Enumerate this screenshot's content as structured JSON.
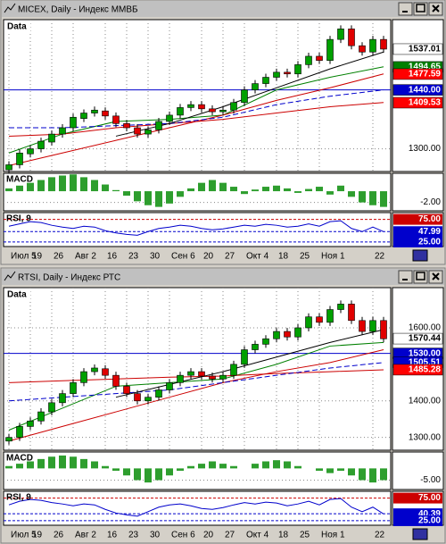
{
  "windows": [
    {
      "title": "MICEX, Daily - Индекс ММВБ",
      "panel_label": "Data",
      "price": {
        "ylim": [
          1246,
          1607
        ],
        "yticks": [
          {
            "value": 1300,
            "label": "1300.00"
          }
        ],
        "candles": [
          [
            1250,
            1262
          ],
          [
            1262,
            1290
          ],
          [
            1288,
            1300
          ],
          [
            1300,
            1318
          ],
          [
            1316,
            1335
          ],
          [
            1335,
            1350
          ],
          [
            1350,
            1375
          ],
          [
            1372,
            1385
          ],
          [
            1385,
            1392
          ],
          [
            1390,
            1378
          ],
          [
            1378,
            1360
          ],
          [
            1360,
            1350
          ],
          [
            1350,
            1335
          ],
          [
            1335,
            1345
          ],
          [
            1345,
            1365
          ],
          [
            1365,
            1380
          ],
          [
            1380,
            1398
          ],
          [
            1398,
            1405
          ],
          [
            1405,
            1395
          ],
          [
            1395,
            1388
          ],
          [
            1388,
            1392
          ],
          [
            1392,
            1410
          ],
          [
            1410,
            1440
          ],
          [
            1440,
            1455
          ],
          [
            1455,
            1470
          ],
          [
            1470,
            1482
          ],
          [
            1482,
            1478
          ],
          [
            1478,
            1500
          ],
          [
            1500,
            1520
          ],
          [
            1520,
            1510
          ],
          [
            1510,
            1560
          ],
          [
            1560,
            1585
          ],
          [
            1585,
            1545
          ],
          [
            1545,
            1530
          ],
          [
            1530,
            1560
          ],
          [
            1560,
            1537
          ]
        ],
        "lines": [
          {
            "color": "#008000",
            "dash": false,
            "values": [
              1290,
              1335,
              1365,
              1370,
              1380,
              1440,
              1470,
              1495
            ]
          },
          {
            "color": "#cc0000",
            "dash": false,
            "values": [
              1330,
              1335,
              1350,
              1360,
              1370,
              1385,
              1400,
              1410
            ]
          },
          {
            "color": "#cc0000",
            "dash": false,
            "values": [
              1260,
              1290,
              1320,
              1350,
              1380,
              1415,
              1445,
              1478
            ]
          },
          {
            "color": "#0000cc",
            "dash": true,
            "values": [
              1350,
              1350,
              1355,
              1360,
              1375,
              1405,
              1425,
              1440
            ]
          },
          {
            "color": "#000000",
            "dash": false,
            "values": [
              null,
              null,
              1330,
              1360,
              1400,
              1445,
              1490,
              1530
            ]
          }
        ],
        "tags": [
          {
            "value": 1537.01,
            "label": "1537.01",
            "bg": "#ffffff",
            "fg": "#000000",
            "line": false
          },
          {
            "value": 1494.65,
            "label": "1494.65",
            "bg": "#008000",
            "fg": "#ffffff",
            "line": false
          },
          {
            "value": 1477.59,
            "label": "1477.59",
            "bg": "#ff0000",
            "fg": "#ffffff",
            "line": false
          },
          {
            "value": 1440,
            "label": "1440.00",
            "bg": "#0000cc",
            "fg": "#ffffff",
            "line": true
          },
          {
            "value": 1409.53,
            "label": "1409.53",
            "bg": "#ff0000",
            "fg": "#ffffff",
            "line": false
          }
        ]
      },
      "macd": {
        "label": "MACD",
        "ylim": [
          -3.5,
          3.2
        ],
        "ticks": [
          {
            "value": -2,
            "label": "-2.00"
          }
        ],
        "values": [
          0.5,
          1,
          1.5,
          2,
          2.5,
          2.8,
          3,
          2.5,
          2,
          1.2,
          0.2,
          -0.8,
          -1.8,
          -2.5,
          -2.8,
          -2.2,
          -1,
          0.5,
          1.5,
          2,
          1.5,
          0.8,
          -0.5,
          0.3,
          0.8,
          1,
          0.5,
          -0.3,
          0.4,
          0.8,
          -0.6,
          1,
          -1,
          -2,
          -2.5,
          -2.8
        ]
      },
      "rsi": {
        "label": "RSI, 9",
        "ylim": [
          15,
          90
        ],
        "tags": [
          {
            "value": 75,
            "label": "75.00",
            "bg": "#cc0000",
            "fg": "#ffffff"
          },
          {
            "value": 47.99,
            "label": "47.99",
            "bg": "#0000cc",
            "fg": "#ffffff"
          },
          {
            "value": 25,
            "label": "25.00",
            "bg": "#0000cc",
            "fg": "#ffffff"
          }
        ],
        "values": [
          60,
          65,
          70,
          68,
          62,
          58,
          55,
          60,
          58,
          50,
          45,
          42,
          40,
          48,
          55,
          58,
          62,
          60,
          55,
          52,
          54,
          58,
          62,
          60,
          64,
          62,
          58,
          60,
          65,
          60,
          70,
          72,
          55,
          48,
          58,
          48
        ]
      },
      "categories": [
        "Июл 5",
        null,
        "19",
        null,
        "26",
        null,
        "Авг 2",
        null,
        null,
        "16",
        null,
        "23",
        null,
        "30",
        null,
        "Сен 6",
        null,
        null,
        "20",
        null,
        "27",
        null,
        "Окт 4",
        null,
        null,
        "18",
        null,
        "25",
        null,
        "Ноя 1",
        null,
        null,
        null,
        null,
        "22",
        null
      ]
    },
    {
      "title": "RTSI, Daily - Индекс РТС",
      "panel_label": "Data",
      "price": {
        "ylim": [
          1265,
          1710
        ],
        "yticks": [
          {
            "value": 1300,
            "label": "1300.00"
          },
          {
            "value": 1400,
            "label": "1400.00"
          },
          {
            "value": 1600,
            "label": "1600.00"
          }
        ],
        "candles": [
          [
            1290,
            1300
          ],
          [
            1300,
            1330
          ],
          [
            1330,
            1345
          ],
          [
            1345,
            1370
          ],
          [
            1370,
            1395
          ],
          [
            1395,
            1420
          ],
          [
            1420,
            1450
          ],
          [
            1450,
            1480
          ],
          [
            1480,
            1490
          ],
          [
            1488,
            1470
          ],
          [
            1470,
            1440
          ],
          [
            1440,
            1420
          ],
          [
            1420,
            1400
          ],
          [
            1400,
            1410
          ],
          [
            1410,
            1430
          ],
          [
            1430,
            1450
          ],
          [
            1450,
            1470
          ],
          [
            1470,
            1480
          ],
          [
            1480,
            1468
          ],
          [
            1468,
            1460
          ],
          [
            1460,
            1470
          ],
          [
            1470,
            1500
          ],
          [
            1500,
            1540
          ],
          [
            1540,
            1555
          ],
          [
            1555,
            1570
          ],
          [
            1570,
            1590
          ],
          [
            1590,
            1575
          ],
          [
            1575,
            1600
          ],
          [
            1600,
            1630
          ],
          [
            1630,
            1615
          ],
          [
            1615,
            1650
          ],
          [
            1650,
            1665
          ],
          [
            1665,
            1620
          ],
          [
            1620,
            1590
          ],
          [
            1590,
            1620
          ],
          [
            1620,
            1570
          ]
        ],
        "lines": [
          {
            "color": "#008000",
            "dash": false,
            "values": [
              1320,
              1380,
              1440,
              1450,
              1460,
              1500,
              1550,
              1560
            ]
          },
          {
            "color": "#cc0000",
            "dash": false,
            "values": [
              1450,
              1455,
              1460,
              1465,
              1468,
              1475,
              1480,
              1485
            ]
          },
          {
            "color": "#cc0000",
            "dash": false,
            "values": [
              1290,
              1330,
              1370,
              1410,
              1450,
              1480,
              1505,
              1540
            ]
          },
          {
            "color": "#0000cc",
            "dash": true,
            "values": [
              1400,
              1410,
              1420,
              1430,
              1450,
              1470,
              1490,
              1505
            ]
          },
          {
            "color": "#000000",
            "dash": false,
            "values": [
              null,
              null,
              1410,
              1445,
              1480,
              1520,
              1560,
              1595
            ]
          }
        ],
        "tags": [
          {
            "value": 1570.44,
            "label": "1570.44",
            "bg": "#ffffff",
            "fg": "#000000",
            "line": false
          },
          {
            "value": 1530,
            "label": "1530.00",
            "bg": "#0000cc",
            "fg": "#ffffff",
            "line": true
          },
          {
            "value": 1505.51,
            "label": "1505.51",
            "bg": "#0000cc",
            "fg": "#ffffff",
            "line": false
          },
          {
            "value": 1485.28,
            "label": "1485.28",
            "bg": "#ff0000",
            "fg": "#ffffff",
            "line": false
          }
        ]
      },
      "macd": {
        "label": "MACD",
        "ylim": [
          -9,
          7
        ],
        "ticks": [
          {
            "value": -5,
            "label": "-5.00"
          }
        ],
        "values": [
          1,
          2,
          3,
          4,
          5,
          5.5,
          5,
          4,
          3,
          1,
          -1,
          -3,
          -5,
          -6,
          -5,
          -3,
          -1,
          1,
          2,
          3,
          2,
          1,
          0,
          2,
          3,
          3.5,
          3,
          1,
          0,
          -1,
          -2,
          -1,
          -3,
          -5,
          -6,
          -5
        ]
      },
      "rsi": {
        "label": "RSI, 9",
        "ylim": [
          15,
          90
        ],
        "tags": [
          {
            "value": 75,
            "label": "75.00",
            "bg": "#cc0000",
            "fg": "#ffffff"
          },
          {
            "value": 40.39,
            "label": "40.39",
            "bg": "#0000cc",
            "fg": "#ffffff"
          },
          {
            "value": 25,
            "label": "25.00",
            "bg": "#0000cc",
            "fg": "#ffffff"
          }
        ],
        "values": [
          60,
          68,
          72,
          70,
          65,
          62,
          58,
          62,
          60,
          50,
          42,
          38,
          35,
          45,
          55,
          60,
          62,
          58,
          52,
          50,
          54,
          60,
          65,
          62,
          66,
          64,
          58,
          62,
          68,
          60,
          72,
          74,
          55,
          45,
          55,
          40
        ]
      },
      "categories": [
        "Июл 5",
        null,
        "19",
        null,
        "26",
        null,
        "Авг 2",
        null,
        null,
        "16",
        null,
        "23",
        null,
        "30",
        null,
        "Сен 6",
        null,
        null,
        "20",
        null,
        "27",
        null,
        "Окт 4",
        null,
        null,
        "18",
        null,
        "25",
        null,
        "Ноя 1",
        null,
        null,
        null,
        null,
        "22",
        null
      ]
    }
  ]
}
